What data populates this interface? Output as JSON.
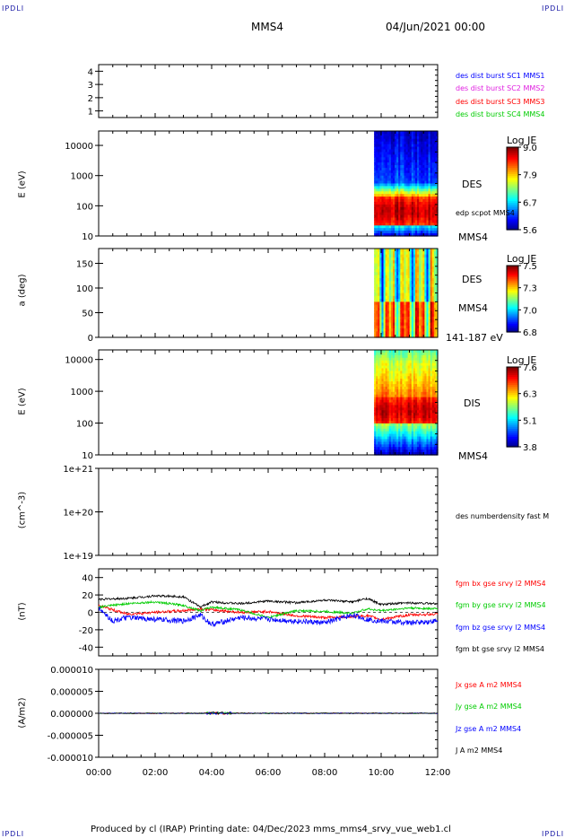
{
  "corners": {
    "tl": "IPDLI",
    "tr": "IPDLI",
    "bl": "IPDLI",
    "br": "IPDLI"
  },
  "header": {
    "spacecraft": "MMS4",
    "datetime": "04/Jun/2021 00:00"
  },
  "footer": "Produced by cl (IRAP)   Printing date: 04/Dec/2023   mms_mms4_srvy_vue_web1.cl",
  "colors": {
    "blue": "#0000ff",
    "magenta": "#e020e0",
    "red": "#ff0000",
    "green": "#00cc00",
    "black": "#000000"
  },
  "chart_data": [
    {
      "type": "line",
      "panel": "burst",
      "ylim": [
        0.5,
        4.5
      ],
      "yticks": [
        "1",
        "2",
        "3",
        "4"
      ],
      "legend": [
        {
          "name": "des dist burst SC1 MMS1",
          "color": "#0000ff"
        },
        {
          "name": "des dist burst SC2 MMS2",
          "color": "#e020e0"
        },
        {
          "name": "des dist burst SC3 MMS3",
          "color": "#ff0000"
        },
        {
          "name": "des dist burst SC4 MMS4",
          "color": "#00cc00"
        }
      ]
    },
    {
      "type": "heatmap",
      "panel": "des_energy",
      "ylabel": "E (eV)",
      "yscale": "log",
      "ylim": [
        10,
        30000
      ],
      "yticks": [
        "10000",
        "1000",
        "100",
        "10"
      ],
      "data_start_hour": 9.75,
      "right_labels": [
        "DES",
        "edp scpot MMS4",
        "MMS4"
      ],
      "colorbar": {
        "title": "Log JE",
        "ticks": [
          "9.0",
          "7.9",
          "6.7",
          "5.6"
        ],
        "range": [
          5.6,
          9.0
        ]
      }
    },
    {
      "type": "heatmap",
      "panel": "des_pitch",
      "ylabel": "a (deg)",
      "ylim": [
        0,
        180
      ],
      "yticks": [
        "150",
        "100",
        "50",
        "0"
      ],
      "data_start_hour": 9.75,
      "right_labels": [
        "DES",
        "MMS4",
        "141-187 eV"
      ],
      "colorbar": {
        "title": "Log JE",
        "ticks": [
          "7.5",
          "7.3",
          "7.0",
          "6.8"
        ],
        "range": [
          6.8,
          7.5
        ]
      }
    },
    {
      "type": "heatmap",
      "panel": "dis_energy",
      "ylabel": "E (eV)",
      "yscale": "log",
      "ylim": [
        10,
        20000
      ],
      "yticks": [
        "10000",
        "1000",
        "100",
        "10"
      ],
      "data_start_hour": 9.75,
      "right_labels": [
        "DIS",
        "MMS4"
      ],
      "colorbar": {
        "title": "Log JE",
        "ticks": [
          "7.6",
          "6.3",
          "5.1",
          "3.8"
        ],
        "range": [
          3.8,
          7.6
        ]
      }
    },
    {
      "type": "line",
      "panel": "density",
      "ylabel": "(cm^-3)",
      "yscale": "log",
      "ylim": [
        1e+19,
        1e+21
      ],
      "yticks": [
        "1e+21",
        "1e+20",
        "1e+19"
      ],
      "legend": [
        {
          "name": "des numberdensity fast M",
          "color": "#000000"
        }
      ]
    },
    {
      "type": "line",
      "panel": "fgm",
      "ylabel": "(nT)",
      "ylim": [
        -50,
        50
      ],
      "yticks": [
        "40",
        "20",
        "0",
        "-20",
        "-40"
      ],
      "series": [
        {
          "name": "fgm bx gse srvy l2 MMS4",
          "color": "#ff0000",
          "x": [
            0,
            1,
            2,
            3,
            3.6,
            4,
            5,
            6,
            7,
            8,
            9,
            9.5,
            10,
            11,
            12
          ],
          "y": [
            8,
            -2,
            0,
            2,
            4,
            3,
            0,
            1,
            -4,
            -6,
            -5,
            -4,
            -8,
            -3,
            -2
          ]
        },
        {
          "name": "fgm by gse srvy l2 MMS4",
          "color": "#00cc00",
          "x": [
            0,
            1,
            2,
            3,
            3.6,
            4,
            5,
            6,
            7,
            8,
            9,
            9.5,
            10,
            11,
            12
          ],
          "y": [
            6,
            10,
            12,
            8,
            2,
            6,
            3,
            -6,
            2,
            1,
            -1,
            4,
            2,
            5,
            4
          ]
        },
        {
          "name": "fgm bz gse srvy l2 MMS4",
          "color": "#0000ff",
          "x": [
            0,
            0.5,
            1,
            2,
            3,
            3.6,
            4,
            5,
            6,
            7,
            8,
            9,
            9.5,
            10,
            11,
            12
          ],
          "y": [
            5,
            -10,
            -6,
            -8,
            -10,
            -3,
            -14,
            -6,
            -8,
            -10,
            -12,
            -3,
            -8,
            -10,
            -12,
            -10
          ]
        },
        {
          "name": "fgm bt gse srvy l2 MMS4",
          "color": "#000000",
          "x": [
            0,
            1,
            2,
            3,
            3.6,
            4,
            5,
            6,
            7,
            8,
            9,
            9.5,
            10,
            11,
            12
          ],
          "y": [
            15,
            16,
            19,
            18,
            6,
            12,
            10,
            13,
            11,
            14,
            12,
            16,
            9,
            11,
            10
          ]
        }
      ]
    },
    {
      "type": "line",
      "panel": "current",
      "ylabel": "(A/m2)",
      "ylim": [
        -1e-05,
        1e-05
      ],
      "yticks": [
        "0.000010",
        "0.000005",
        "0.000000",
        "-0.000005",
        "-0.000010"
      ],
      "series": [
        {
          "name": "Jx gse A m2 MMS4",
          "color": "#ff0000",
          "x": [
            0,
            12
          ],
          "y": [
            0,
            0
          ]
        },
        {
          "name": "Jy gse A m2 MMS4",
          "color": "#00cc00",
          "x": [
            0,
            12
          ],
          "y": [
            0,
            0
          ]
        },
        {
          "name": "Jz gse A m2 MMS4",
          "color": "#0000ff",
          "x": [
            0,
            12
          ],
          "y": [
            0,
            0
          ]
        },
        {
          "name": "J A m2 MMS4",
          "color": "#000000",
          "x": [
            0,
            12
          ],
          "y": [
            0,
            0
          ]
        }
      ],
      "xticks": [
        "00:00",
        "02:00",
        "04:00",
        "06:00",
        "08:00",
        "10:00",
        "12:00"
      ],
      "xlim_hours": [
        0,
        12
      ]
    }
  ]
}
